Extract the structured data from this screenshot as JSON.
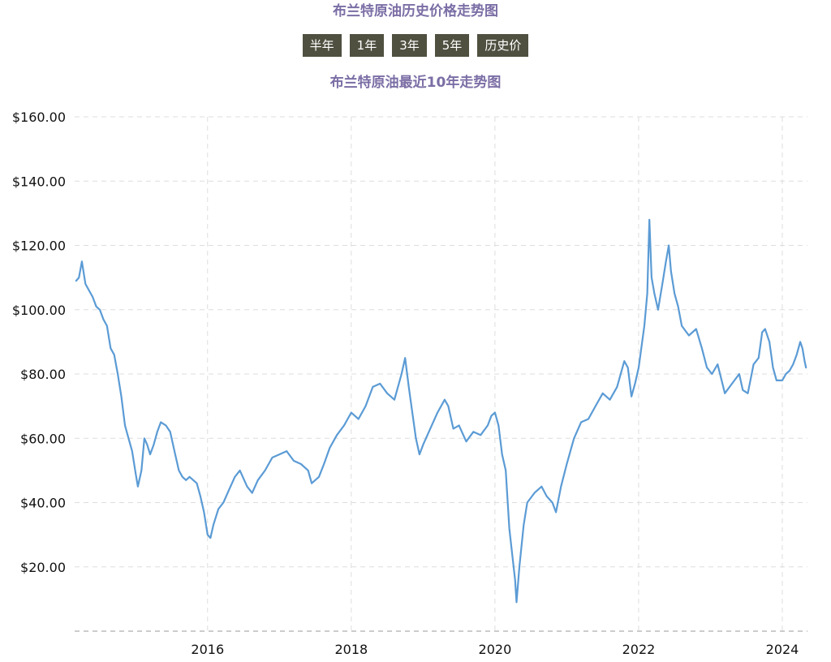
{
  "page": {
    "title": "布兰特原油历史价格走势图"
  },
  "range_tabs": [
    {
      "label": "半年"
    },
    {
      "label": "1年"
    },
    {
      "label": "3年"
    },
    {
      "label": "5年"
    },
    {
      "label": "历史价"
    }
  ],
  "colors": {
    "title": "#7b6ea5",
    "tab_bg": "#505041",
    "line": "#5b9bd5",
    "grid": "#dddddd"
  },
  "chart_data": {
    "type": "line",
    "subtitle": "布兰特原油最近10年走势图",
    "xlabel": "",
    "ylabel": "",
    "xlim": [
      2014.15,
      2024.35
    ],
    "ylim": [
      0,
      160
    ],
    "grid": true,
    "legend": "none",
    "x_ticks": [
      {
        "value": 2016,
        "label": "2016"
      },
      {
        "value": 2018,
        "label": "2018"
      },
      {
        "value": 2020,
        "label": "2020"
      },
      {
        "value": 2022,
        "label": "2022"
      },
      {
        "value": 2024,
        "label": "2024"
      }
    ],
    "y_ticks": [
      {
        "value": 20,
        "label": "$20.00"
      },
      {
        "value": 40,
        "label": "$40.00"
      },
      {
        "value": 60,
        "label": "$60.00"
      },
      {
        "value": 80,
        "label": "$80.00"
      },
      {
        "value": 100,
        "label": "$100.00"
      },
      {
        "value": 120,
        "label": "$120.00"
      },
      {
        "value": 140,
        "label": "$140.00"
      },
      {
        "value": 160,
        "label": "$160.00"
      }
    ],
    "series": [
      {
        "points": [
          [
            2014.17,
            109
          ],
          [
            2014.21,
            110
          ],
          [
            2014.25,
            115
          ],
          [
            2014.3,
            108
          ],
          [
            2014.35,
            106
          ],
          [
            2014.4,
            104
          ],
          [
            2014.45,
            101
          ],
          [
            2014.5,
            100
          ],
          [
            2014.55,
            97
          ],
          [
            2014.6,
            95
          ],
          [
            2014.65,
            88
          ],
          [
            2014.7,
            86
          ],
          [
            2014.75,
            80
          ],
          [
            2014.8,
            73
          ],
          [
            2014.85,
            64
          ],
          [
            2014.9,
            60
          ],
          [
            2014.95,
            56
          ],
          [
            2015.0,
            49
          ],
          [
            2015.03,
            45
          ],
          [
            2015.08,
            50
          ],
          [
            2015.12,
            60
          ],
          [
            2015.16,
            58
          ],
          [
            2015.2,
            55
          ],
          [
            2015.25,
            58
          ],
          [
            2015.3,
            62
          ],
          [
            2015.35,
            65
          ],
          [
            2015.42,
            64
          ],
          [
            2015.48,
            62
          ],
          [
            2015.55,
            55
          ],
          [
            2015.6,
            50
          ],
          [
            2015.65,
            48
          ],
          [
            2015.7,
            47
          ],
          [
            2015.75,
            48
          ],
          [
            2015.8,
            47
          ],
          [
            2015.85,
            46
          ],
          [
            2015.9,
            42
          ],
          [
            2015.95,
            37
          ],
          [
            2016.0,
            30
          ],
          [
            2016.04,
            29
          ],
          [
            2016.08,
            33
          ],
          [
            2016.15,
            38
          ],
          [
            2016.22,
            40
          ],
          [
            2016.3,
            44
          ],
          [
            2016.38,
            48
          ],
          [
            2016.45,
            50
          ],
          [
            2016.55,
            45
          ],
          [
            2016.62,
            43
          ],
          [
            2016.7,
            47
          ],
          [
            2016.8,
            50
          ],
          [
            2016.9,
            54
          ],
          [
            2017.0,
            55
          ],
          [
            2017.1,
            56
          ],
          [
            2017.2,
            53
          ],
          [
            2017.3,
            52
          ],
          [
            2017.4,
            50
          ],
          [
            2017.45,
            46
          ],
          [
            2017.55,
            48
          ],
          [
            2017.62,
            52
          ],
          [
            2017.7,
            57
          ],
          [
            2017.8,
            61
          ],
          [
            2017.9,
            64
          ],
          [
            2018.0,
            68
          ],
          [
            2018.1,
            66
          ],
          [
            2018.2,
            70
          ],
          [
            2018.3,
            76
          ],
          [
            2018.4,
            77
          ],
          [
            2018.5,
            74
          ],
          [
            2018.6,
            72
          ],
          [
            2018.7,
            80
          ],
          [
            2018.75,
            85
          ],
          [
            2018.8,
            76
          ],
          [
            2018.85,
            68
          ],
          [
            2018.9,
            60
          ],
          [
            2018.95,
            55
          ],
          [
            2019.0,
            58
          ],
          [
            2019.1,
            63
          ],
          [
            2019.2,
            68
          ],
          [
            2019.3,
            72
          ],
          [
            2019.35,
            70
          ],
          [
            2019.42,
            63
          ],
          [
            2019.5,
            64
          ],
          [
            2019.6,
            59
          ],
          [
            2019.7,
            62
          ],
          [
            2019.8,
            61
          ],
          [
            2019.9,
            64
          ],
          [
            2019.95,
            67
          ],
          [
            2020.0,
            68
          ],
          [
            2020.05,
            64
          ],
          [
            2020.1,
            55
          ],
          [
            2020.15,
            50
          ],
          [
            2020.2,
            32
          ],
          [
            2020.25,
            22
          ],
          [
            2020.28,
            16
          ],
          [
            2020.3,
            9
          ],
          [
            2020.34,
            20
          ],
          [
            2020.4,
            33
          ],
          [
            2020.45,
            40
          ],
          [
            2020.55,
            43
          ],
          [
            2020.65,
            45
          ],
          [
            2020.72,
            42
          ],
          [
            2020.8,
            40
          ],
          [
            2020.85,
            37
          ],
          [
            2020.92,
            45
          ],
          [
            2021.0,
            52
          ],
          [
            2021.1,
            60
          ],
          [
            2021.2,
            65
          ],
          [
            2021.3,
            66
          ],
          [
            2021.4,
            70
          ],
          [
            2021.5,
            74
          ],
          [
            2021.6,
            72
          ],
          [
            2021.7,
            76
          ],
          [
            2021.8,
            84
          ],
          [
            2021.85,
            82
          ],
          [
            2021.9,
            73
          ],
          [
            2021.95,
            77
          ],
          [
            2022.0,
            82
          ],
          [
            2022.08,
            95
          ],
          [
            2022.12,
            105
          ],
          [
            2022.15,
            128
          ],
          [
            2022.18,
            110
          ],
          [
            2022.22,
            105
          ],
          [
            2022.27,
            100
          ],
          [
            2022.33,
            108
          ],
          [
            2022.38,
            115
          ],
          [
            2022.42,
            120
          ],
          [
            2022.45,
            112
          ],
          [
            2022.5,
            105
          ],
          [
            2022.55,
            101
          ],
          [
            2022.6,
            95
          ],
          [
            2022.7,
            92
          ],
          [
            2022.8,
            94
          ],
          [
            2022.88,
            88
          ],
          [
            2022.95,
            82
          ],
          [
            2023.02,
            80
          ],
          [
            2023.1,
            83
          ],
          [
            2023.2,
            74
          ],
          [
            2023.3,
            77
          ],
          [
            2023.4,
            80
          ],
          [
            2023.45,
            75
          ],
          [
            2023.52,
            74
          ],
          [
            2023.6,
            83
          ],
          [
            2023.67,
            85
          ],
          [
            2023.72,
            93
          ],
          [
            2023.76,
            94
          ],
          [
            2023.82,
            90
          ],
          [
            2023.87,
            82
          ],
          [
            2023.92,
            78
          ],
          [
            2024.0,
            78
          ],
          [
            2024.05,
            80
          ],
          [
            2024.1,
            81
          ],
          [
            2024.15,
            83
          ],
          [
            2024.2,
            86
          ],
          [
            2024.25,
            90
          ],
          [
            2024.28,
            88
          ],
          [
            2024.31,
            84
          ],
          [
            2024.33,
            82
          ]
        ]
      }
    ]
  }
}
